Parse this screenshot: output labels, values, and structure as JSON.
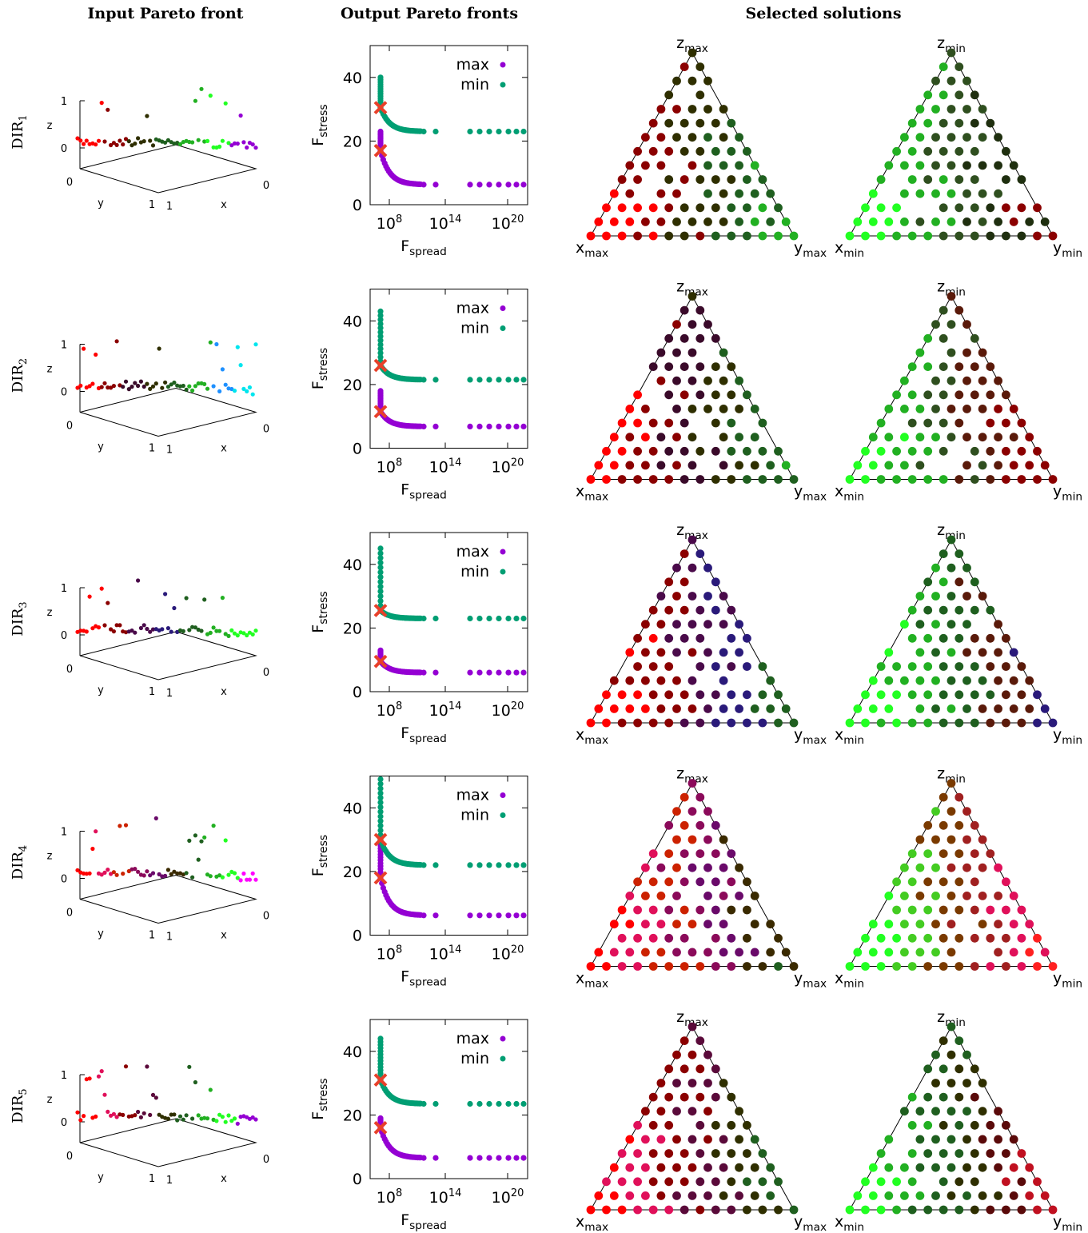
{
  "headers": {
    "input": "Input Pareto front",
    "output": "Output Pareto fronts",
    "selected": "Selected solutions"
  },
  "input_axes": {
    "x": "x",
    "y": "y",
    "z": "z",
    "tick0": "0",
    "tick1": "1"
  },
  "pareto_axes": {
    "ylabel": "F",
    "ylabel_sub": "stress",
    "xlabel": "F",
    "xlabel_sub": "spread",
    "yticks": [
      "0",
      "20",
      "40"
    ],
    "xticks": [
      {
        "base": "10",
        "exp": "8"
      },
      {
        "base": "10",
        "exp": "14"
      },
      {
        "base": "10",
        "exp": "20"
      }
    ]
  },
  "legend": {
    "max": "max",
    "min": "min"
  },
  "colors": {
    "max": "#9400d3",
    "min": "#009e73",
    "cross": "#e8402a"
  },
  "ternary_labels": {
    "max": {
      "top": "z",
      "top_sub": "max",
      "left": "x",
      "left_sub": "max",
      "right": "y",
      "right_sub": "max"
    },
    "min": {
      "top": "z",
      "top_sub": "min",
      "left": "x",
      "left_sub": "min",
      "right": "y",
      "right_sub": "min"
    }
  },
  "chart_data": [
    {
      "row": "DIR",
      "row_sub": "1",
      "type": "scatter",
      "ylim": [
        0,
        50
      ],
      "series": [
        {
          "name": "max",
          "y_top": 23,
          "plateau": 6.3,
          "cross": 17
        },
        {
          "name": "min",
          "y_top": 40,
          "plateau": 23,
          "cross": 30.5
        }
      ],
      "palette_max": [
        "#ff0000",
        "#8b0000",
        "#2f2f00",
        "#1f5f1f",
        "#22b022",
        "#22ff22",
        "#9400d3"
      ],
      "palette_min": [
        "#22ff22",
        "#22b022",
        "#2f4f1f",
        "#1f2f0f",
        "#8b0000",
        "#ff0000",
        "#9400d3"
      ]
    },
    {
      "row": "DIR",
      "row_sub": "2",
      "type": "scatter",
      "ylim": [
        0,
        50
      ],
      "series": [
        {
          "name": "max",
          "y_top": 18,
          "plateau": 6.8,
          "cross": 11.5
        },
        {
          "name": "min",
          "y_top": 43,
          "plateau": 21.5,
          "cross": 26
        }
      ],
      "palette_max": [
        "#ff0000",
        "#8b0000",
        "#3a0a2a",
        "#2f2f00",
        "#1f5f1f",
        "#22b022",
        "#1e90ff",
        "#00e5ee"
      ],
      "palette_min": [
        "#22ff22",
        "#22b022",
        "#2f4f1f",
        "#5a1a0a",
        "#8b0000",
        "#ff0000",
        "#1e90ff",
        "#00e5ee"
      ]
    },
    {
      "row": "DIR",
      "row_sub": "3",
      "type": "scatter",
      "ylim": [
        0,
        50
      ],
      "series": [
        {
          "name": "max",
          "y_top": 13,
          "plateau": 6,
          "cross": 9.5
        },
        {
          "name": "min",
          "y_top": 45,
          "plateau": 23,
          "cross": 25.5
        }
      ],
      "palette_max": [
        "#ff0000",
        "#8b0000",
        "#4a0a4a",
        "#2a1a7a",
        "#1f5f1f",
        "#22b022",
        "#22ff22"
      ],
      "palette_min": [
        "#22ff22",
        "#22b022",
        "#1f5f1f",
        "#5a1a0a",
        "#2a1a7a",
        "#4a0a7a",
        "#9400d3"
      ]
    },
    {
      "row": "DIR",
      "row_sub": "4",
      "type": "scatter",
      "ylim": [
        0,
        50
      ],
      "series": [
        {
          "name": "max",
          "y_top": 30,
          "plateau": 6.2,
          "cross": 18
        },
        {
          "name": "min",
          "y_top": 49,
          "plateau": 22,
          "cross": 30
        }
      ],
      "palette_max": [
        "#ff0000",
        "#e0105a",
        "#cc2200",
        "#8b0a5a",
        "#6a0a6a",
        "#3a2a00",
        "#1f5f1f",
        "#22b022",
        "#22ff22",
        "#ff00ff"
      ],
      "palette_min": [
        "#22ff22",
        "#44cc22",
        "#7a3a00",
        "#a02020",
        "#e0105a",
        "#ff2020",
        "#ff00ff",
        "#8b00ff"
      ]
    },
    {
      "row": "DIR",
      "row_sub": "5",
      "type": "scatter",
      "ylim": [
        0,
        50
      ],
      "series": [
        {
          "name": "max",
          "y_top": 19,
          "plateau": 6.5,
          "cross": 16
        },
        {
          "name": "min",
          "y_top": 44,
          "plateau": 23.5,
          "cross": 31
        }
      ],
      "palette_max": [
        "#ff0000",
        "#e0105a",
        "#8b0000",
        "#5a0a3a",
        "#2f2f00",
        "#1f5f1f",
        "#22b022",
        "#22ff22",
        "#9400d3"
      ],
      "palette_min": [
        "#22ff22",
        "#22b022",
        "#1f5f1f",
        "#2f2f00",
        "#5a0a0a",
        "#c01020",
        "#ff0000",
        "#8b00ff",
        "#1a1a4a"
      ]
    }
  ]
}
